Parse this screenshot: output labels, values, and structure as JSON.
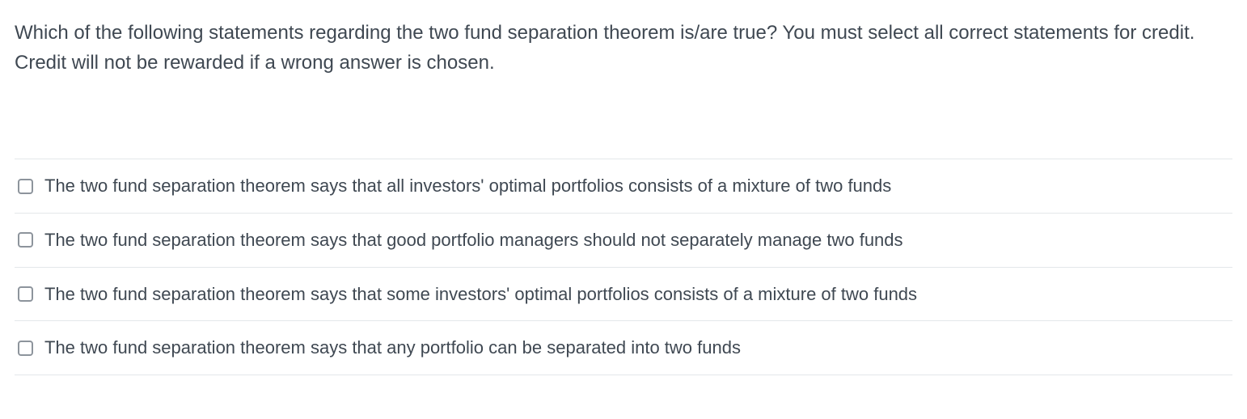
{
  "question": {
    "text": "Which of the following statements regarding the two fund separation theorem is/are true? You must select all correct statements for credit. Credit will not be rewarded if a wrong answer is chosen."
  },
  "options": [
    {
      "label": "The two fund separation theorem says that all investors' optimal portfolios consists of a mixture of two funds",
      "checked": false
    },
    {
      "label": "The two fund separation theorem says that good portfolio managers should not separately manage two funds",
      "checked": false
    },
    {
      "label": "The two fund separation theorem says that some investors' optimal portfolios consists of a mixture of two funds",
      "checked": false
    },
    {
      "label": "The two fund separation theorem says that any portfolio can be separated into two funds",
      "checked": false
    }
  ],
  "colors": {
    "text": "#3f4852",
    "divider": "#e4e7ea",
    "checkbox_border": "#8d949c",
    "background": "#ffffff"
  },
  "typography": {
    "question_fontsize": 24,
    "option_fontsize": 22,
    "font_family": "Segoe UI / Helvetica Neue"
  }
}
